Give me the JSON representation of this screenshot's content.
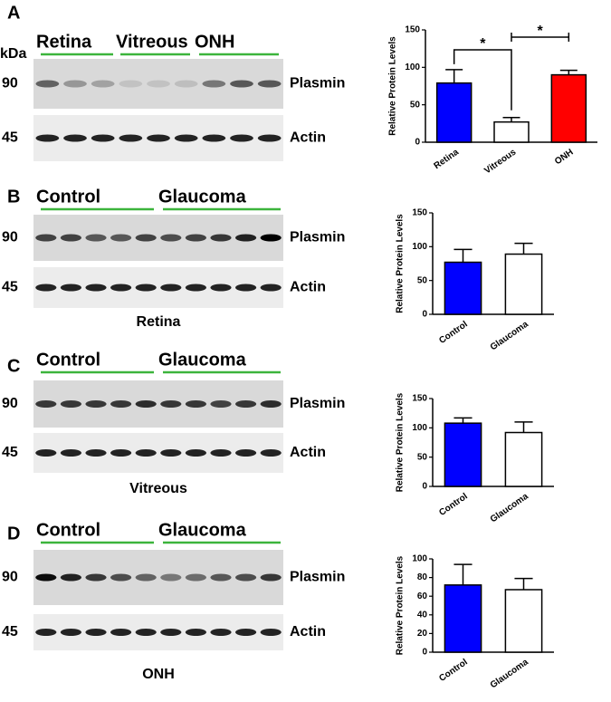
{
  "panels": [
    {
      "letter": "A",
      "unit": "kDa",
      "groups": [
        "Retina",
        "Vitreous",
        "ONH"
      ],
      "markers": [
        90,
        45
      ],
      "proteins": [
        "Plasmin",
        "Actin"
      ]
    },
    {
      "letter": "B",
      "groups": [
        "Control",
        "Glaucoma"
      ],
      "markers": [
        90,
        45
      ],
      "proteins": [
        "Plasmin",
        "Actin"
      ],
      "tissue": "Retina"
    },
    {
      "letter": "C",
      "groups": [
        "Control",
        "Glaucoma"
      ],
      "markers": [
        90,
        45
      ],
      "proteins": [
        "Plasmin",
        "Actin"
      ],
      "tissue": "Vitreous"
    },
    {
      "letter": "D",
      "groups": [
        "Control",
        "Glaucoma"
      ],
      "markers": [
        90,
        45
      ],
      "proteins": [
        "Plasmin",
        "Actin"
      ],
      "tissue": "ONH"
    }
  ],
  "chart_data": [
    {
      "type": "bar",
      "y_label": "Relative Protein Levels",
      "categories": [
        "Retina",
        "Vitreous",
        "ONH"
      ],
      "values": [
        79,
        27,
        90
      ],
      "errors": [
        18,
        6,
        6
      ],
      "colors": [
        "#0000ff",
        "#ffffff",
        "#ff0000"
      ],
      "ylim": [
        0,
        150
      ],
      "yticks": [
        0,
        50,
        100,
        150
      ],
      "annotations": [
        "*",
        "*"
      ]
    },
    {
      "type": "bar",
      "y_label": "Relative Protein Levels",
      "categories": [
        "Control",
        "Glaucoma"
      ],
      "values": [
        77,
        89
      ],
      "errors": [
        19,
        16
      ],
      "colors": [
        "#0000ff",
        "#ffffff"
      ],
      "ylim": [
        0,
        150
      ],
      "yticks": [
        0,
        50,
        100,
        150
      ]
    },
    {
      "type": "bar",
      "y_label": "Relative Protein Levels",
      "categories": [
        "Control",
        "Glaucoma"
      ],
      "values": [
        108,
        92
      ],
      "errors": [
        9,
        18
      ],
      "colors": [
        "#0000ff",
        "#ffffff"
      ],
      "ylim": [
        0,
        150
      ],
      "yticks": [
        0,
        50,
        100,
        150
      ]
    },
    {
      "type": "bar",
      "y_label": "Relative Protein Levels",
      "categories": [
        "Control",
        "Glaucoma"
      ],
      "values": [
        72,
        67
      ],
      "errors": [
        22,
        12
      ],
      "colors": [
        "#0000ff",
        "#ffffff"
      ],
      "ylim": [
        0,
        100
      ],
      "yticks": [
        0,
        20,
        40,
        60,
        80,
        100
      ]
    }
  ]
}
